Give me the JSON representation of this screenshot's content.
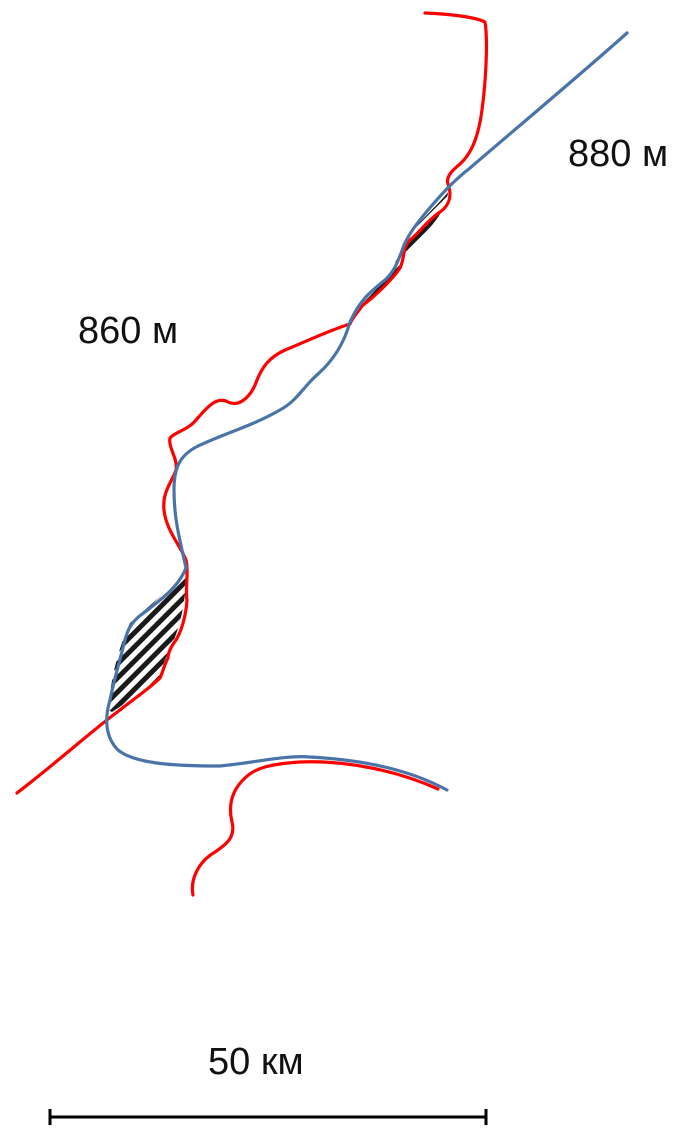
{
  "labels": {
    "upper_contour": "880 м",
    "lower_contour": "860 м",
    "scale": "50 км"
  },
  "colors": {
    "red_line": "#ff0000",
    "blue_line": "#4a74a8",
    "hatch": "#1a1a1a",
    "text": "#111111"
  }
}
